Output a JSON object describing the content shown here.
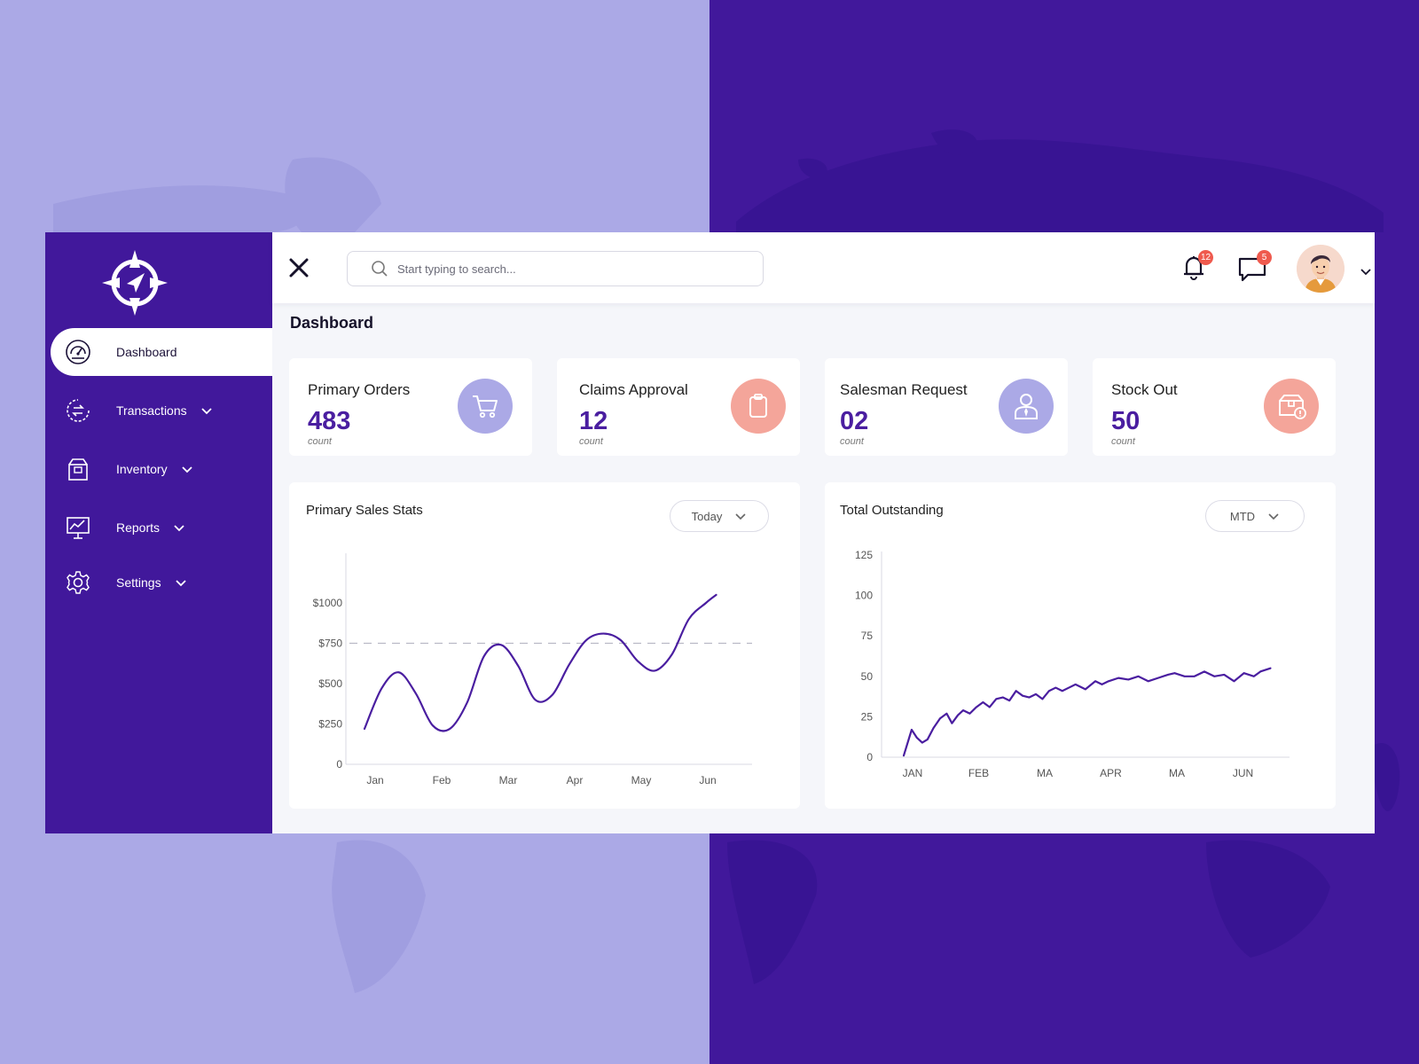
{
  "colors": {
    "brand": "#41189b",
    "accent": "#4a1ea0",
    "lavender": "#aba9e6",
    "coral": "#f4a59a",
    "badge": "#ef5a4e"
  },
  "sidebar": {
    "items": [
      {
        "label": "Dashboard",
        "icon": "speedometer-icon",
        "active": true
      },
      {
        "label": "Transactions",
        "icon": "exchange-icon"
      },
      {
        "label": "Inventory",
        "icon": "box-icon"
      },
      {
        "label": "Reports",
        "icon": "presentation-chart-icon"
      },
      {
        "label": "Settings",
        "icon": "gear-icon"
      }
    ]
  },
  "topbar": {
    "search_placeholder": "Start typing to search...",
    "notifications_count": "12",
    "messages_count": "5"
  },
  "page": {
    "title": "Dashboard"
  },
  "stats": [
    {
      "label": "Primary Orders",
      "value": "483",
      "unit": "count",
      "icon": "cart-icon"
    },
    {
      "label": "Claims Approval",
      "value": "12",
      "unit": "count",
      "icon": "clipboard-icon"
    },
    {
      "label": "Salesman Request",
      "value": "02",
      "unit": "count",
      "icon": "salesman-icon"
    },
    {
      "label": "Stock Out",
      "value": "50",
      "unit": "count",
      "icon": "box-alert-icon"
    }
  ],
  "charts": {
    "sales": {
      "title": "Primary Sales Stats",
      "filter": "Today"
    },
    "outstanding": {
      "title": "Total Outstanding",
      "filter": "MTD"
    }
  },
  "chart_data": [
    {
      "type": "line",
      "title": "Primary Sales Stats",
      "xlabel": "",
      "ylabel": "",
      "x_tick_labels": [
        "Jan",
        "Feb",
        "Mar",
        "Apr",
        "May",
        "Jun"
      ],
      "y_tick_labels": [
        "0",
        "$250",
        "$500",
        "$750",
        "$1000"
      ],
      "ylim": [
        0,
        1250
      ],
      "reference_line": 750,
      "x": [
        0.0,
        0.25,
        0.5,
        0.75,
        1.0,
        1.25,
        1.5,
        1.75,
        2.0,
        2.25,
        2.5,
        2.75,
        3.0,
        3.25,
        3.5,
        3.75,
        4.0,
        4.25,
        4.5,
        4.75,
        5.0,
        5.15
      ],
      "series": [
        {
          "values": [
            220,
            470,
            570,
            440,
            240,
            220,
            380,
            670,
            740,
            610,
            400,
            430,
            620,
            770,
            810,
            770,
            640,
            580,
            680,
            900,
            1000,
            1050
          ]
        }
      ]
    },
    {
      "type": "line",
      "title": "Total Outstanding",
      "xlabel": "",
      "ylabel": "",
      "x_tick_labels": [
        "JAN",
        "FEB",
        "MA",
        "APR",
        "MA",
        "JUN"
      ],
      "y_tick_labels": [
        "0",
        "25",
        "50",
        "75",
        "100",
        "125"
      ],
      "ylim": [
        0,
        125
      ],
      "x": [
        0,
        0.12,
        0.2,
        0.28,
        0.36,
        0.45,
        0.55,
        0.65,
        0.73,
        0.82,
        0.9,
        1.0,
        1.1,
        1.2,
        1.3,
        1.4,
        1.5,
        1.6,
        1.7,
        1.8,
        1.9,
        2.0,
        2.1,
        2.2,
        2.3,
        2.4,
        2.5,
        2.6,
        2.75,
        2.9,
        3.0,
        3.1,
        3.25,
        3.4,
        3.55,
        3.7,
        3.85,
        4.0,
        4.1,
        4.25,
        4.4,
        4.55,
        4.7,
        4.85,
        5.0,
        5.15,
        5.3,
        5.4,
        5.55
      ],
      "series": [
        {
          "values": [
            1,
            17,
            12,
            9,
            11,
            18,
            24,
            27,
            21,
            26,
            29,
            27,
            31,
            34,
            31,
            36,
            37,
            35,
            41,
            38,
            37,
            39,
            36,
            41,
            43,
            41,
            43,
            45,
            42,
            47,
            45,
            47,
            49,
            48,
            50,
            47,
            49,
            51,
            52,
            50,
            50,
            53,
            50,
            51,
            47,
            52,
            50,
            53,
            55
          ]
        }
      ]
    }
  ]
}
